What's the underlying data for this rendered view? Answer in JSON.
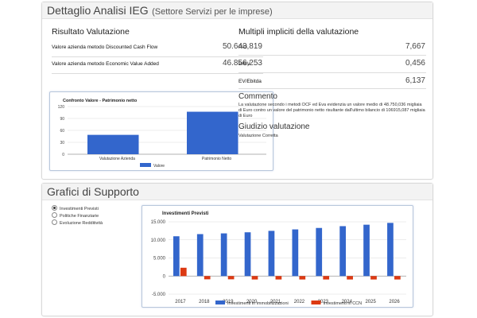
{
  "top_panel": {
    "title": "Dettaglio Analisi IEG",
    "subtitle": "(Settore Servizi per le imprese)",
    "valuation": {
      "title": "Risultato Valutazione",
      "rows": [
        {
          "label": "Valore azienda metodo Discounted Cash Flow",
          "value": "50.643,819"
        },
        {
          "label": "Valore azienda metodo Economic Value Added",
          "value": "46.856,253"
        }
      ]
    },
    "multiples": {
      "title": "Multipli impliciti della valutazione",
      "rows": [
        {
          "label": "P/U",
          "value": "7,667"
        },
        {
          "label": "P/BV",
          "value": "0,456"
        },
        {
          "label": "EV/Ebitda",
          "value": "6,137"
        }
      ]
    },
    "comment": {
      "title": "Commento",
      "text": "La valutazione secondo i metodi DCF ed Eva evidenzia un valore medio di 48.750,036 migliaia di Euro contro un valore del patrimonio netto risultante dall'ultimo bilancio di 106915,087 migliaia di Euro"
    },
    "judgement": {
      "title": "Giudizio valutazione",
      "text": "Valutazione Corretta"
    }
  },
  "bottom_panel": {
    "title": "Grafici di Supporto",
    "options": [
      {
        "label": "Investimenti Previsti",
        "selected": true
      },
      {
        "label": "Politiche Finanziarie",
        "selected": false
      },
      {
        "label": "Evoluzione Redditività",
        "selected": false
      }
    ]
  },
  "colors": {
    "blue": "#3366cc",
    "red": "#dc3912"
  },
  "chart_data": [
    {
      "type": "bar",
      "title": "Confronto Valore - Patrimonio netto",
      "categories": [
        "Valutazione Azienda",
        "Patrimonio Netto"
      ],
      "series": [
        {
          "name": "Valore",
          "values": [
            48.75,
            106.915
          ]
        }
      ],
      "ylim": [
        0,
        120
      ],
      "yticks": [
        "0",
        "30",
        "60",
        "90",
        "120"
      ],
      "legend": "bottom",
      "grid": true
    },
    {
      "type": "bar",
      "title": "Investimenti Previsti",
      "categories": [
        "2017",
        "2018",
        "2019",
        "2020",
        "2021",
        "2022",
        "2023",
        "2024",
        "2025",
        "2026"
      ],
      "series": [
        {
          "name": "Investimenti in immobilizzazioni",
          "values": [
            11000,
            11600,
            11800,
            12100,
            12500,
            12900,
            13300,
            13800,
            14200,
            14700
          ]
        },
        {
          "name": "Investimenti in CCN",
          "values": [
            2300,
            -900,
            -900,
            -950,
            -950,
            -950,
            -950,
            -950,
            -950,
            -950
          ]
        }
      ],
      "ylim": [
        -5000,
        15000
      ],
      "yticks": [
        "-5.000",
        "0",
        "5.000",
        "10.000",
        "15.000"
      ],
      "legend": "bottom",
      "grid": true
    }
  ]
}
